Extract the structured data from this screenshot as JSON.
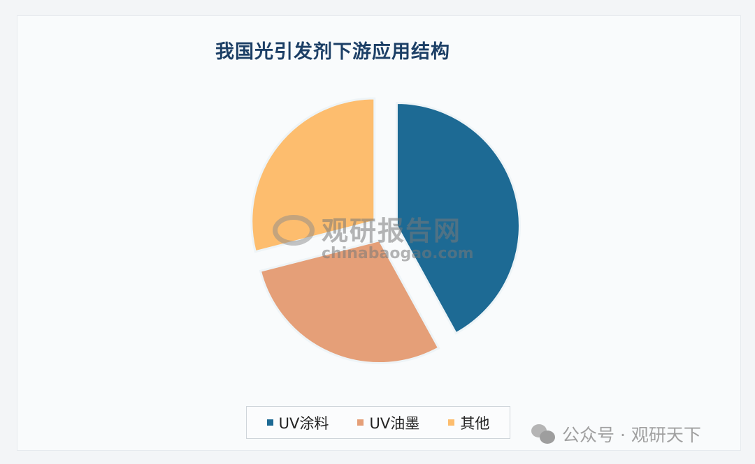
{
  "chart_data": {
    "type": "pie",
    "title": "我国光引发剂下游应用结构",
    "categories": [
      "UV涂料",
      "UV油墨",
      "其他"
    ],
    "values": [
      42,
      29,
      29
    ],
    "unit": "%",
    "colors": [
      "#1d6a94",
      "#e59f78",
      "#fdbd6e"
    ],
    "exploded": true,
    "start_angle": "12 o'clock, clockwise",
    "legend_position": "bottom"
  },
  "watermark": {
    "cn": "观研报告网",
    "en": "chinabaogao.com"
  },
  "footer": {
    "text": "公众号 · 观研天下",
    "icon": "wechat-icon"
  }
}
